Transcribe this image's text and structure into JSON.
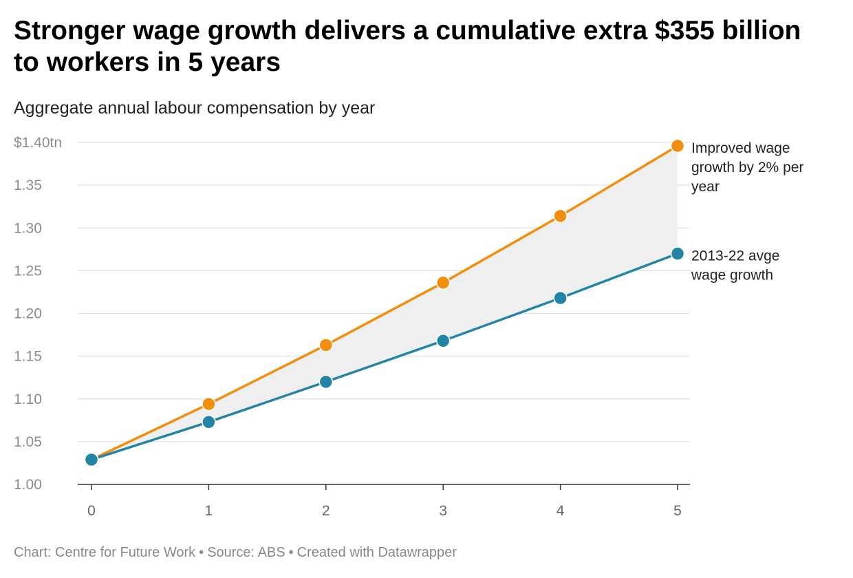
{
  "chart_data": {
    "type": "line",
    "title": "Stronger wage growth delivers a cumulative extra $355 billion to workers in 5 years",
    "subtitle": "Aggregate annual labour compensation by year",
    "xlabel": "",
    "ylabel": "",
    "x": [
      0,
      1,
      2,
      3,
      4,
      5
    ],
    "x_tick_labels": [
      "0",
      "1",
      "2",
      "3",
      "4",
      "5"
    ],
    "xlim": [
      0,
      5
    ],
    "ylim": [
      1.0,
      1.4
    ],
    "y_ticks": [
      1.0,
      1.05,
      1.1,
      1.15,
      1.2,
      1.25,
      1.3,
      1.35,
      1.4
    ],
    "y_tick_labels": [
      "1.00",
      "1.05",
      "1.10",
      "1.15",
      "1.20",
      "1.25",
      "1.30",
      "1.35",
      "$1.40tn"
    ],
    "grid": true,
    "shaded_area_between_series": true,
    "series": [
      {
        "name": "Improved wage growth by 2% per year",
        "label_lines": [
          "Improved wage",
          "growth by 2% per",
          "year"
        ],
        "color": "#f28e0d",
        "values": [
          1.029,
          1.094,
          1.163,
          1.236,
          1.314,
          1.396
        ]
      },
      {
        "name": "2013-22 avge wage growth",
        "label_lines": [
          "2013-22 avge",
          "wage growth"
        ],
        "color": "#2384a5",
        "values": [
          1.029,
          1.073,
          1.12,
          1.168,
          1.218,
          1.27
        ]
      }
    ],
    "shade_color": "#efefef",
    "grid_color": "#e0e0e0",
    "axis_color": "#333333"
  },
  "footer": {
    "chart_credit": "Chart: Centre for Future Work",
    "source": "Source: ABS",
    "created_with": "Created with Datawrapper",
    "separator": "•"
  }
}
